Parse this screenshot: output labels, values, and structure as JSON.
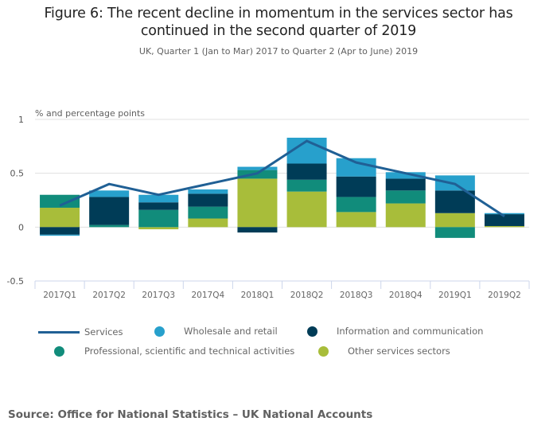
{
  "header": {
    "title_line1": "Figure 6: The recent decline in momentum in the services sector has",
    "title_line2": "continued in the second quarter of 2019",
    "subtitle": "UK, Quarter 1 (Jan to Mar) 2017 to Quarter 2 (Apr to June) 2019"
  },
  "chart_data": {
    "type": "bar",
    "stacked": true,
    "title": "Figure 6: The recent decline in momentum in the services sector has continued in the second quarter of 2019",
    "subtitle": "UK, Quarter 1 (Jan to Mar) 2017 to Quarter 2 (Apr to June) 2019",
    "xlabel": "",
    "ylabel": "% and percentage points",
    "ylim": [
      -0.5,
      1
    ],
    "yticks": [
      1,
      0.5,
      0,
      -0.5
    ],
    "ytick_labels": [
      "1",
      "0.5",
      "0",
      "-0.5"
    ],
    "grid": true,
    "legend_position": "bottom",
    "categories": [
      "2017Q1",
      "2017Q2",
      "2017Q3",
      "2017Q4",
      "2018Q1",
      "2018Q2",
      "2018Q3",
      "2018Q4",
      "2019Q1",
      "2019Q2"
    ],
    "series": [
      {
        "name": "Other services sectors",
        "kind": "bar",
        "color": "#a8bd3a",
        "values": [
          0.18,
          0.0,
          -0.02,
          0.08,
          0.45,
          0.33,
          0.14,
          0.22,
          0.13,
          0.01
        ]
      },
      {
        "name": "Professional, scientific and technical activities",
        "kind": "bar",
        "color": "#118c7b",
        "values": [
          0.12,
          0.02,
          0.16,
          0.11,
          0.08,
          0.11,
          0.14,
          0.12,
          -0.1,
          0.0
        ]
      },
      {
        "name": "Information and communication",
        "kind": "bar",
        "color": "#003c57",
        "values": [
          -0.07,
          0.26,
          0.07,
          0.12,
          -0.05,
          0.15,
          0.19,
          0.11,
          0.21,
          0.11
        ]
      },
      {
        "name": "Wholesale and retail",
        "kind": "bar",
        "color": "#27a0cc",
        "values": [
          -0.01,
          0.06,
          0.07,
          0.04,
          0.03,
          0.24,
          0.17,
          0.06,
          0.14,
          0.01
        ]
      },
      {
        "name": "Services",
        "kind": "line",
        "color": "#206095",
        "values": [
          0.2,
          0.4,
          0.3,
          0.4,
          0.5,
          0.8,
          0.6,
          0.5,
          0.4,
          0.1
        ]
      }
    ]
  },
  "legend": {
    "items": [
      {
        "label": "Services",
        "type": "line",
        "color": "#206095"
      },
      {
        "label": "Wholesale and retail",
        "type": "dot",
        "color": "#27a0cc"
      },
      {
        "label": "Information and communication",
        "type": "dot",
        "color": "#003c57"
      },
      {
        "label": "Professional, scientific and technical activities",
        "type": "dot",
        "color": "#118c7b"
      },
      {
        "label": "Other services sectors",
        "type": "dot",
        "color": "#a8bd3a"
      }
    ]
  },
  "footer": {
    "source": "Source: Office for National Statistics – UK National Accounts"
  }
}
